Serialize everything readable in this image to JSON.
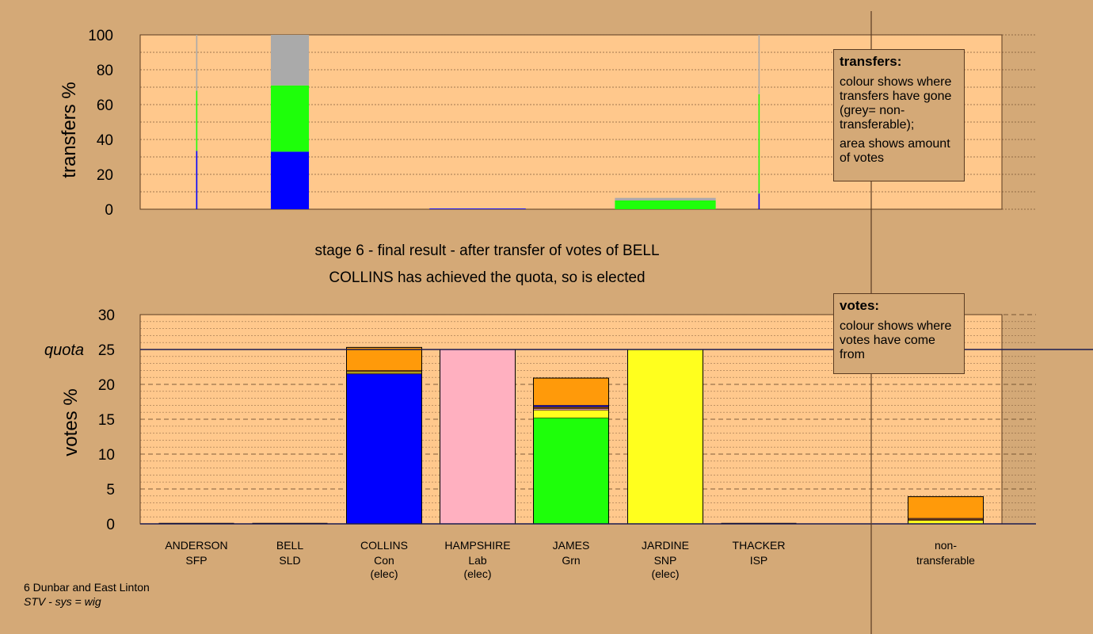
{
  "chart_data": [
    {
      "type": "bar",
      "name": "transfers",
      "ylabel": "transfers %",
      "ylim": [
        0,
        100
      ],
      "yticks": [
        0,
        20,
        40,
        60,
        80,
        100
      ],
      "stack_order": [
        "Con",
        "Grn",
        "non-transferable"
      ],
      "columns": [
        {
          "candidate": "ANDERSON",
          "width_pct": 0.15,
          "segments": [
            33.5,
            34.5,
            32
          ]
        },
        {
          "candidate": "BELL",
          "width_pct": 8.5,
          "segments": [
            33,
            38,
            29
          ]
        },
        {
          "candidate": "HAMPSHIRE",
          "width_pct": 21.5,
          "segments": [
            0.4,
            0,
            0
          ]
        },
        {
          "candidate": "JARDINE",
          "width_pct": 22.5,
          "segments": [
            0,
            5,
            1.5
          ]
        },
        {
          "candidate": "THACKER",
          "width_pct": 0.15,
          "segments": [
            9,
            57,
            34
          ]
        }
      ]
    },
    {
      "type": "bar",
      "name": "votes",
      "ylabel": "votes %",
      "ylim": [
        0,
        30
      ],
      "yticks": [
        0,
        5,
        10,
        15,
        20,
        25,
        30
      ],
      "quota": 25,
      "quota_label": "quota",
      "categories": [
        {
          "name": "ANDERSON",
          "party": "SFP",
          "elected": ""
        },
        {
          "name": "BELL",
          "party": "SLD",
          "elected": ""
        },
        {
          "name": "COLLINS",
          "party": "Con",
          "elected": "(elec)"
        },
        {
          "name": "HAMPSHIRE",
          "party": "Lab",
          "elected": "(elec)"
        },
        {
          "name": "JAMES",
          "party": "Grn",
          "elected": ""
        },
        {
          "name": "JARDINE",
          "party": "SNP",
          "elected": "(elec)"
        },
        {
          "name": "THACKER",
          "party": "ISP",
          "elected": ""
        },
        {
          "name": "non-",
          "party": "transferable",
          "elected": ""
        }
      ],
      "stacks": [
        [],
        [],
        [
          {
            "source": "Con",
            "value": 21.5
          },
          {
            "source": "Lab",
            "value": 0.1
          },
          {
            "source": "SNP",
            "value": 0.2
          },
          {
            "source": "ISP",
            "value": 0.2
          },
          {
            "source": "SFP",
            "value": 3.3
          }
        ],
        [
          {
            "source": "Lab",
            "value": 25
          }
        ],
        [
          {
            "source": "Grn",
            "value": 15.2
          },
          {
            "source": "SNP",
            "value": 1.1
          },
          {
            "source": "Lab",
            "value": 0.2
          },
          {
            "source": "ISP",
            "value": 0.3
          },
          {
            "source": "Con",
            "value": 0.2
          },
          {
            "source": "SFP",
            "value": 3.9
          }
        ],
        [
          {
            "source": "SNP",
            "value": 25
          }
        ],
        [],
        [
          {
            "source": "SNP",
            "value": 0.5
          },
          {
            "source": "ISP",
            "value": 0.2
          },
          {
            "source": "Lab",
            "value": 0.1
          },
          {
            "source": "SFP",
            "value": 3.1
          }
        ]
      ]
    }
  ],
  "colors": {
    "Con": "#0000ff",
    "Lab": "#ffb0c0",
    "Grn": "#1eff0a",
    "SNP": "#ffff1e",
    "ISP": "#6e3a14",
    "SLD": "#ff9a0a",
    "SFP": "#ff9a0a",
    "non-transferable": "#aaaaaa",
    "plot_bg": "#ffc88c",
    "page_bg": "#d4a977"
  },
  "captions": {
    "line1": "stage 6 - final result - after transfer of votes of BELL",
    "line2": "COLLINS has achieved the quota, so is elected"
  },
  "legend_transfers": {
    "title": "transfers:",
    "text1": "colour shows where transfers have gone (grey= non-transferable);",
    "text2": "area shows amount of votes"
  },
  "legend_votes": {
    "title": "votes:",
    "text1": "colour shows where votes have come from"
  },
  "footer": {
    "line1": "6 Dunbar and East Linton",
    "line2": "STV - sys = wig"
  }
}
